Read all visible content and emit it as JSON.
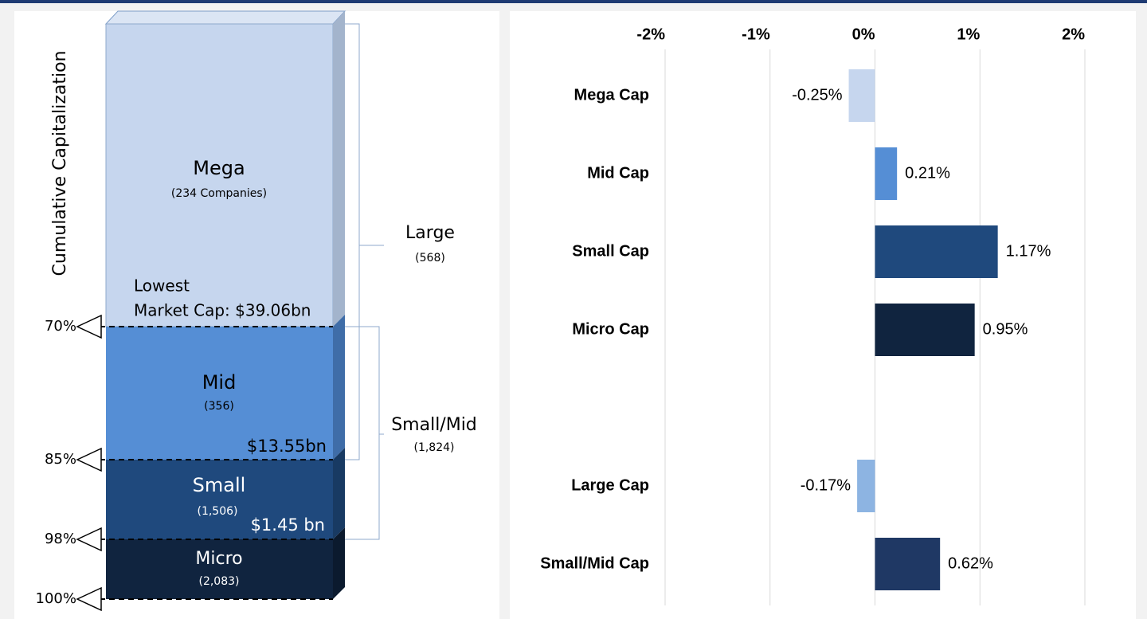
{
  "diagram": {
    "axis_title": "Cumulative Capitalization",
    "segments": [
      {
        "name": "Mega",
        "count": "(234 Companies)",
        "threshold": [
          "Lowest",
          "Market Cap: $39.06bn"
        ]
      },
      {
        "name": "Mid",
        "count": "(356)",
        "threshold": [
          "$13.55bn"
        ]
      },
      {
        "name": "Small",
        "count": "(1,506)",
        "threshold": [
          "$1.45 bn"
        ]
      },
      {
        "name": "Micro",
        "count": "(2,083)"
      }
    ],
    "levels": [
      "70%",
      "85%",
      "98%",
      "100%"
    ],
    "groups": [
      {
        "name": "Large",
        "count": "(568)"
      },
      {
        "name": "Small/Mid",
        "count": "(1,824)"
      }
    ]
  },
  "chart_data": {
    "type": "bar",
    "orientation": "horizontal",
    "categories": [
      "Mega Cap",
      "Mid Cap",
      "Small Cap",
      "Micro Cap",
      null,
      "Large Cap",
      "Small/Mid Cap"
    ],
    "values": [
      -0.25,
      0.21,
      1.17,
      0.95,
      null,
      -0.17,
      0.62
    ],
    "value_labels": [
      "-0.25%",
      "0.21%",
      "1.17%",
      "0.95%",
      null,
      "-0.17%",
      "0.62%"
    ],
    "colors": [
      "#c6d6ee",
      "#558ed5",
      "#1f497d",
      "#10243f",
      null,
      "#8db4e2",
      "#1f3864"
    ],
    "xlim": [
      -2,
      2
    ],
    "xticks": [
      {
        "value": -2,
        "label": "-2%"
      },
      {
        "value": -1,
        "label": "-1%"
      },
      {
        "value": 0,
        "label": "0%"
      },
      {
        "value": 1,
        "label": "1%"
      },
      {
        "value": 2,
        "label": "2%"
      }
    ],
    "grid": true
  }
}
